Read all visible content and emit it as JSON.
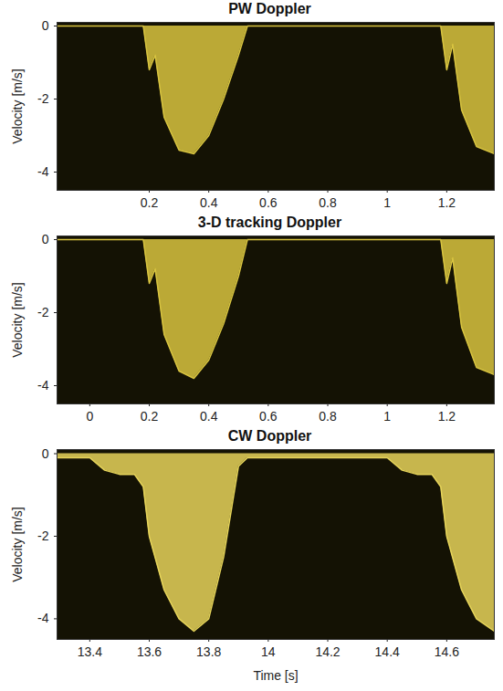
{
  "chart_data": [
    {
      "type": "area",
      "title": "PW Doppler",
      "y_label": "Velocity [m/s]",
      "color": "#d8c440",
      "x": [
        -0.11,
        0.18,
        0.2,
        0.22,
        0.25,
        0.3,
        0.35,
        0.4,
        0.45,
        0.5,
        0.53,
        0.56,
        1.18,
        1.2,
        1.22,
        1.25,
        1.3,
        1.36
      ],
      "values": [
        0,
        0,
        -1.2,
        -0.8,
        -2.5,
        -3.4,
        -3.5,
        -3.0,
        -2.0,
        -0.8,
        0,
        0,
        0,
        -1.2,
        -0.5,
        -2.3,
        -3.3,
        -3.5
      ],
      "xlim": [
        -0.11,
        1.36
      ],
      "xticks": [
        0.2,
        0.4,
        0.6,
        0.8,
        1,
        1.2
      ],
      "ylim": [
        -4.5,
        0.1
      ],
      "yticks": [
        0,
        -2,
        -4
      ]
    },
    {
      "type": "area",
      "title": "3-D tracking Doppler",
      "y_label": "Velocity [m/s]",
      "color": "#d8c440",
      "x": [
        -0.11,
        0.18,
        0.2,
        0.22,
        0.25,
        0.3,
        0.35,
        0.4,
        0.45,
        0.5,
        0.53,
        0.56,
        1.18,
        1.2,
        1.22,
        1.25,
        1.3,
        1.36
      ],
      "values": [
        0,
        0,
        -1.2,
        -0.8,
        -2.6,
        -3.6,
        -3.8,
        -3.3,
        -2.3,
        -1.0,
        0,
        0,
        0,
        -1.2,
        -0.5,
        -2.4,
        -3.5,
        -3.7
      ],
      "xlim": [
        -0.11,
        1.36
      ],
      "xticks": [
        0,
        0.2,
        0.4,
        0.6,
        0.8,
        1,
        1.2
      ],
      "ylim": [
        -4.5,
        0.1
      ],
      "yticks": [
        0,
        -2,
        -4
      ]
    },
    {
      "type": "area",
      "title": "CW Doppler",
      "y_label": "Velocity [m/s]",
      "x_label": "Time [s]",
      "color": "#e6d45a",
      "x": [
        13.29,
        13.4,
        13.45,
        13.5,
        13.55,
        13.58,
        13.6,
        13.65,
        13.7,
        13.75,
        13.8,
        13.85,
        13.9,
        13.93,
        14.4,
        14.45,
        14.5,
        14.55,
        14.58,
        14.6,
        14.65,
        14.7,
        14.76
      ],
      "values": [
        -0.1,
        -0.1,
        -0.4,
        -0.5,
        -0.5,
        -0.8,
        -2.0,
        -3.3,
        -4.0,
        -4.3,
        -4.0,
        -2.5,
        -0.3,
        -0.1,
        -0.1,
        -0.4,
        -0.5,
        -0.5,
        -0.8,
        -2.0,
        -3.3,
        -4.0,
        -4.3
      ],
      "xlim": [
        13.29,
        14.76
      ],
      "xticks": [
        13.4,
        13.6,
        13.8,
        14,
        14.2,
        14.4,
        14.6
      ],
      "ylim": [
        -4.5,
        0.1
      ],
      "yticks": [
        0,
        -2,
        -4
      ]
    }
  ]
}
